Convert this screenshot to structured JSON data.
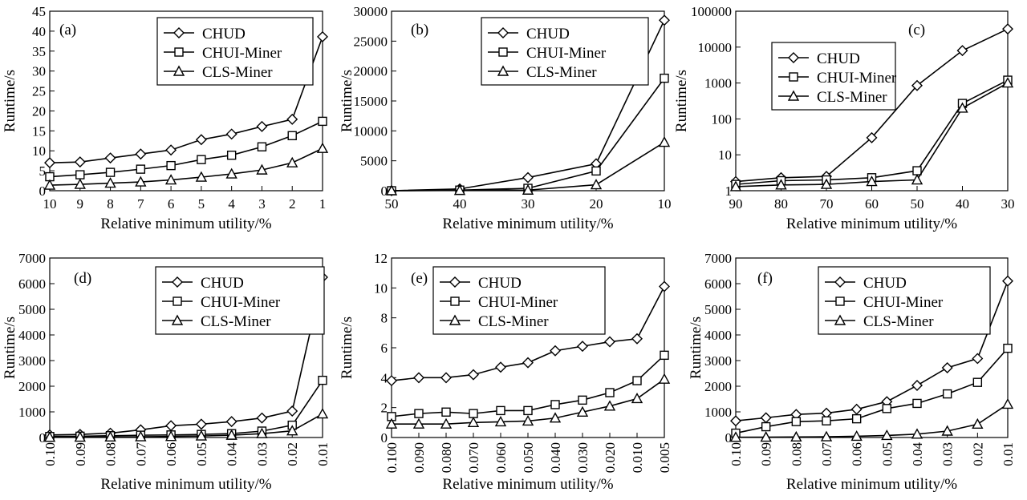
{
  "chart_data": [
    {
      "type": "line",
      "panel_label": "(a)",
      "xlabel": "Relative minimum utility/%",
      "ylabel": "Runtime/s",
      "x": [
        "10",
        "9",
        "8",
        "7",
        "6",
        "5",
        "4",
        "3",
        "2",
        "1"
      ],
      "yscale": "linear",
      "ylim": [
        0,
        45
      ],
      "yticks": [
        "0",
        "5",
        "10",
        "15",
        "20",
        "25",
        "30",
        "35",
        "40",
        "45"
      ],
      "xtick_rotation": 0,
      "legend_placement": "top-right",
      "series": [
        {
          "name": "CHUD",
          "marker": "diamond",
          "values": [
            7.0,
            7.2,
            8.2,
            9.2,
            10.2,
            12.8,
            14.2,
            16.1,
            17.9,
            38.6
          ]
        },
        {
          "name": "CHUI-Miner",
          "marker": "square",
          "values": [
            3.5,
            4.0,
            4.6,
            5.4,
            6.3,
            7.8,
            8.9,
            11.0,
            13.8,
            17.4
          ]
        },
        {
          "name": "CLS-Miner",
          "marker": "triangle",
          "values": [
            1.4,
            1.6,
            1.9,
            2.2,
            2.7,
            3.4,
            4.2,
            5.2,
            7.0,
            10.6
          ]
        }
      ]
    },
    {
      "type": "line",
      "panel_label": "(b)",
      "xlabel": "Relative minimum utility/%",
      "ylabel": "Runtime/s",
      "x": [
        "50",
        "40",
        "30",
        "20",
        "10"
      ],
      "yscale": "linear",
      "ylim": [
        0,
        30000
      ],
      "yticks": [
        "0",
        "5000",
        "10000",
        "15000",
        "20000",
        "25000",
        "30000"
      ],
      "xtick_rotation": 0,
      "legend_placement": "top-right",
      "series": [
        {
          "name": "CHUD",
          "marker": "diamond",
          "values": [
            0,
            300,
            2200,
            4500,
            28500
          ]
        },
        {
          "name": "CHUI-Miner",
          "marker": "square",
          "values": [
            0,
            100,
            400,
            3300,
            18800
          ]
        },
        {
          "name": "CLS-Miner",
          "marker": "triangle",
          "values": [
            0,
            50,
            100,
            1000,
            8100
          ]
        }
      ]
    },
    {
      "type": "line",
      "panel_label": "(c)",
      "xlabel": "Relative minimum utility/%",
      "ylabel": "Runtime/s",
      "x": [
        "90",
        "80",
        "70",
        "60",
        "50",
        "40",
        "30"
      ],
      "yscale": "log",
      "ylim": [
        1,
        100000
      ],
      "yticks": [
        "1",
        "10",
        "100",
        "1000",
        "10000",
        "100000"
      ],
      "xtick_rotation": 0,
      "legend_placement": "left",
      "series": [
        {
          "name": "CHUD",
          "marker": "diamond",
          "values": [
            1.8,
            2.3,
            2.5,
            30,
            850,
            8000,
            32000
          ]
        },
        {
          "name": "CHUI-Miner",
          "marker": "square",
          "values": [
            1.5,
            1.9,
            2.0,
            2.3,
            3.6,
            270,
            1200
          ]
        },
        {
          "name": "CLS-Miner",
          "marker": "triangle",
          "values": [
            1.3,
            1.45,
            1.5,
            1.8,
            2.0,
            200,
            1000
          ]
        }
      ]
    },
    {
      "type": "line",
      "panel_label": "(d)",
      "xlabel": "Relative minimum utility/%",
      "ylabel": "Runtime/s",
      "x": [
        "0.10",
        "0.09",
        "0.08",
        "0.07",
        "0.06",
        "0.05",
        "0.04",
        "0.03",
        "0.02",
        "0.01"
      ],
      "yscale": "linear",
      "ylim": [
        0,
        7000
      ],
      "yticks": [
        "0",
        "1000",
        "2000",
        "3000",
        "4000",
        "5000",
        "6000",
        "7000"
      ],
      "xtick_rotation": -90,
      "legend_placement": "top-right",
      "series": [
        {
          "name": "CHUD",
          "marker": "diamond",
          "values": [
            100,
            120,
            170,
            300,
            460,
            520,
            620,
            760,
            1030,
            6250
          ]
        },
        {
          "name": "CHUI-Miner",
          "marker": "square",
          "values": [
            40,
            50,
            70,
            90,
            100,
            120,
            150,
            250,
            480,
            2230
          ]
        },
        {
          "name": "CLS-Miner",
          "marker": "triangle",
          "values": [
            10,
            15,
            20,
            30,
            40,
            60,
            90,
            150,
            260,
            920
          ]
        }
      ]
    },
    {
      "type": "line",
      "panel_label": "(e)",
      "xlabel": "Relative minimum utility/%",
      "ylabel": "Runtime/s",
      "x": [
        "0.100",
        "0.090",
        "0.080",
        "0.070",
        "0.060",
        "0.050",
        "0.040",
        "0.030",
        "0.020",
        "0.010",
        "0.005"
      ],
      "yscale": "linear",
      "ylim": [
        0,
        12
      ],
      "yticks": [
        "0",
        "2",
        "4",
        "6",
        "8",
        "10",
        "12"
      ],
      "xtick_rotation": -90,
      "legend_placement": "top-left",
      "series": [
        {
          "name": "CHUD",
          "marker": "diamond",
          "values": [
            3.8,
            4.0,
            4.0,
            4.2,
            4.7,
            5.0,
            5.8,
            6.1,
            6.4,
            6.6,
            10.1
          ]
        },
        {
          "name": "CHUI-Miner",
          "marker": "square",
          "values": [
            1.4,
            1.6,
            1.7,
            1.6,
            1.8,
            1.8,
            2.2,
            2.5,
            3.0,
            3.8,
            5.5
          ]
        },
        {
          "name": "CLS-Miner",
          "marker": "triangle",
          "values": [
            0.9,
            0.9,
            0.9,
            1.0,
            1.05,
            1.1,
            1.3,
            1.7,
            2.1,
            2.6,
            3.9
          ]
        }
      ]
    },
    {
      "type": "line",
      "panel_label": "(f)",
      "xlabel": "Relative minimum utility/%",
      "ylabel": "Runtime/s",
      "x": [
        "0.10",
        "0.09",
        "0.08",
        "0.07",
        "0.06",
        "0.05",
        "0.04",
        "0.03",
        "0.02",
        "0.01"
      ],
      "yscale": "linear",
      "ylim": [
        0,
        7000
      ],
      "yticks": [
        "0",
        "1000",
        "2000",
        "3000",
        "4000",
        "5000",
        "6000",
        "7000"
      ],
      "xtick_rotation": -90,
      "legend_placement": "top-center",
      "series": [
        {
          "name": "CHUD",
          "marker": "diamond",
          "values": [
            650,
            770,
            900,
            950,
            1100,
            1400,
            2030,
            2720,
            3080,
            6100
          ]
        },
        {
          "name": "CHUI-Miner",
          "marker": "square",
          "values": [
            170,
            420,
            620,
            650,
            730,
            1130,
            1330,
            1700,
            2150,
            3480
          ]
        },
        {
          "name": "CLS-Miner",
          "marker": "triangle",
          "values": [
            10,
            15,
            20,
            30,
            50,
            80,
            130,
            250,
            520,
            1300
          ]
        }
      ]
    }
  ]
}
